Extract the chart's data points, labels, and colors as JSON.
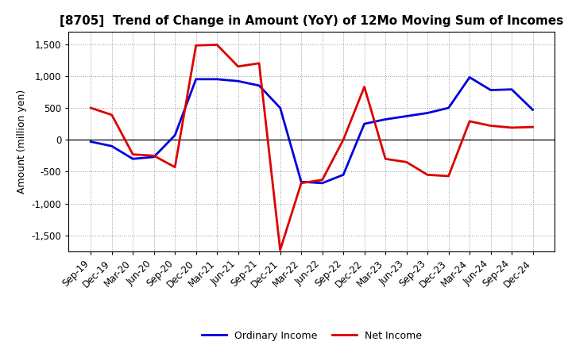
{
  "title": "[8705]  Trend of Change in Amount (YoY) of 12Mo Moving Sum of Incomes",
  "ylabel": "Amount (million yen)",
  "x_labels": [
    "Sep-19",
    "Dec-19",
    "Mar-20",
    "Jun-20",
    "Sep-20",
    "Dec-20",
    "Mar-21",
    "Jun-21",
    "Sep-21",
    "Dec-21",
    "Mar-22",
    "Jun-22",
    "Sep-22",
    "Dec-22",
    "Mar-23",
    "Jun-23",
    "Sep-23",
    "Dec-23",
    "Mar-24",
    "Jun-24",
    "Sep-24",
    "Dec-24"
  ],
  "ordinary_income": [
    -30,
    -100,
    -300,
    -270,
    70,
    950,
    950,
    920,
    850,
    500,
    -660,
    -680,
    -550,
    250,
    320,
    370,
    420,
    500,
    980,
    780,
    790,
    470
  ],
  "net_income": [
    500,
    390,
    -230,
    -250,
    -430,
    1480,
    1490,
    1150,
    1200,
    -1730,
    -680,
    -630,
    0,
    830,
    -300,
    -350,
    -550,
    -570,
    290,
    220,
    190,
    200
  ],
  "ordinary_color": "#0000dd",
  "net_color": "#dd0000",
  "background_color": "#ffffff",
  "grid_color": "#999999",
  "ylim": [
    -1750,
    1700
  ],
  "yticks": [
    -1500,
    -1000,
    -500,
    0,
    500,
    1000,
    1500
  ],
  "legend_labels": [
    "Ordinary Income",
    "Net Income"
  ],
  "line_width": 2.0,
  "title_fontsize": 11,
  "axis_fontsize": 8.5,
  "ylabel_fontsize": 9
}
